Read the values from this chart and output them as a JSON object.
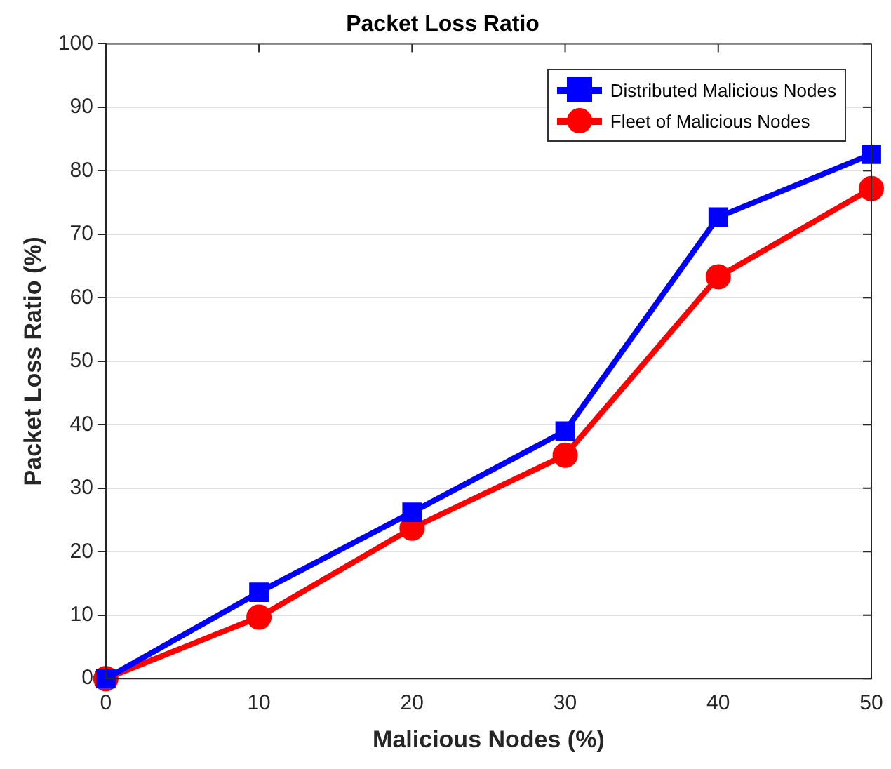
{
  "chart_data": {
    "type": "line",
    "title": "Packet Loss Ratio",
    "xlabel": "Malicious Nodes (%)",
    "ylabel": "Packet Loss Ratio (%)",
    "x": [
      0,
      10,
      20,
      30,
      40,
      50
    ],
    "series": [
      {
        "name": "Distributed Malicious Nodes",
        "color": "#0000ff",
        "marker": "square",
        "values": [
          0,
          13.6,
          26.2,
          39.0,
          72.7,
          82.6
        ]
      },
      {
        "name": "Fleet of Malicious Nodes",
        "color": "#ff0000",
        "marker": "circle",
        "values": [
          0,
          9.7,
          23.7,
          35.2,
          63.3,
          77.2
        ]
      }
    ],
    "xlim": [
      0,
      50
    ],
    "xticks": [
      0,
      10,
      20,
      30,
      40,
      50
    ],
    "ylim": [
      0,
      100
    ],
    "yticks": [
      0,
      10,
      20,
      30,
      40,
      50,
      60,
      70,
      80,
      90,
      100
    ],
    "grid": "y",
    "legend": "top right",
    "line_style": "solid"
  }
}
